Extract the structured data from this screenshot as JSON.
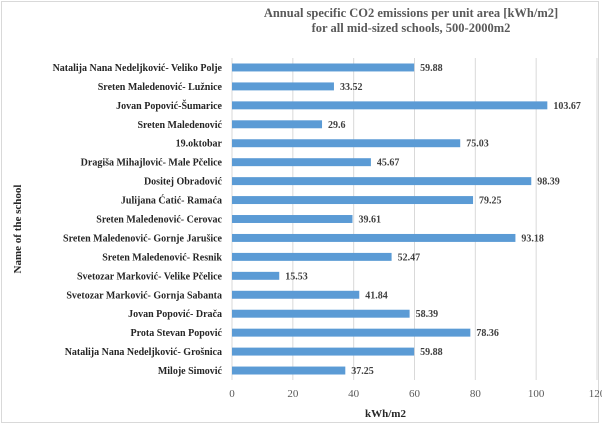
{
  "chart_data": {
    "type": "bar",
    "orientation": "horizontal",
    "title_line1": "Annual specific CO2 emissions per unit area [kWh/m2]",
    "title_line2": "for all mid-sized schools, 500-2000m2",
    "xlabel": "kWh/m2",
    "ylabel": "Name of the school",
    "xlim": [
      0,
      120
    ],
    "xticks": [
      0,
      20,
      40,
      60,
      80,
      100,
      120
    ],
    "grid": "vertical",
    "legend": "none",
    "bar_color": "#5b9bd5",
    "categories": [
      "Natalija Nana Nedeljković- Veliko Polje",
      "Sreten Maledenović- Lužnice",
      "Jovan Popović-Šumarice",
      "Sreten Maledenović",
      "19.oktobar",
      "Dragiša Mihajlović- Male Pčelice",
      "Dositej Obradović",
      "Julijana Ćatić- Ramaća",
      "Sreten Maledenović- Cerovac",
      "Sreten Maledenović- Gornje Jarušice",
      "Sreten Maledenović- Resnik",
      "Svetozar Marković- Velike Pčelice",
      "Svetozar Marković- Gornja Sabanta",
      "Jovan Popović- Drača",
      "Prota Stevan Popović",
      "Natalija Nana Nedeljković- Grošnica",
      "Miloje Simović"
    ],
    "values": [
      59.88,
      33.52,
      103.67,
      29.6,
      75.03,
      45.67,
      98.39,
      79.25,
      39.61,
      93.18,
      52.47,
      15.53,
      41.84,
      58.39,
      78.36,
      59.88,
      37.25
    ]
  }
}
